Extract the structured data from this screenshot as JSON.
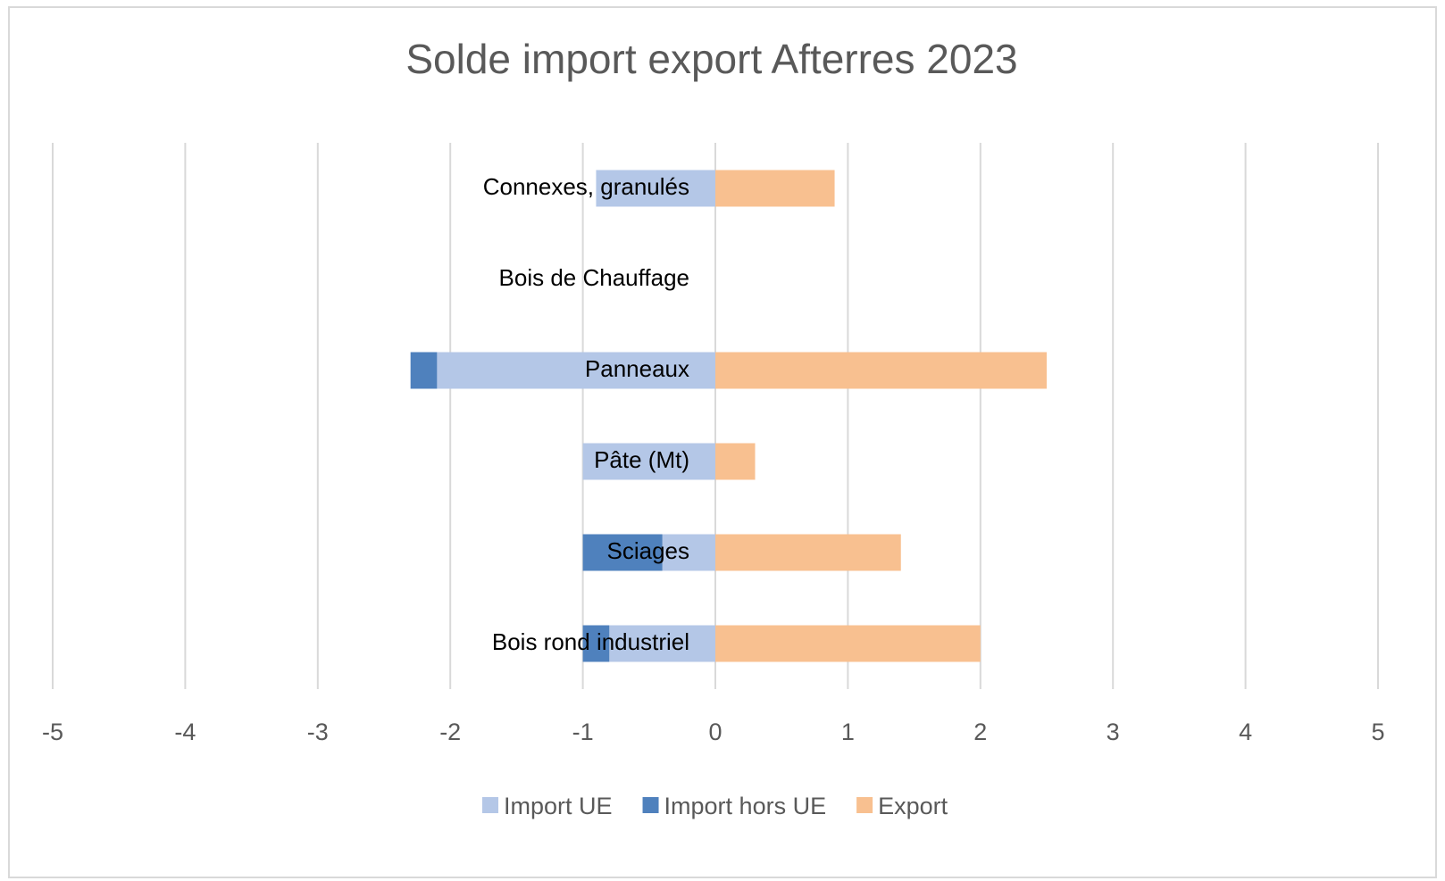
{
  "chart_data": {
    "type": "stacked_hbar",
    "title": "Solde import export Afterres 2023",
    "categories": [
      "Connexes, granulés",
      "Bois de Chauffage",
      "Panneaux",
      "Pâte (Mt)",
      "Sciages",
      "Bois rond industriel"
    ],
    "series": [
      {
        "name": "Import UE",
        "color": "#b4c7e7",
        "values": [
          -0.9,
          null,
          -2.1,
          -1.0,
          -0.4,
          -0.8
        ]
      },
      {
        "name": "Import hors UE",
        "color": "#4f81bd",
        "values": [
          null,
          null,
          -0.2,
          null,
          -0.6,
          -0.2
        ]
      },
      {
        "name": "Export",
        "color": "#f8c090",
        "values": [
          0.9,
          null,
          2.5,
          0.3,
          1.4,
          2.0
        ]
      }
    ],
    "xlim": [
      -5,
      5
    ],
    "xticks": [
      -5,
      -4,
      -3,
      -2,
      -1,
      0,
      1,
      2,
      3,
      4,
      5
    ],
    "grid": true,
    "legend": "bottom"
  }
}
